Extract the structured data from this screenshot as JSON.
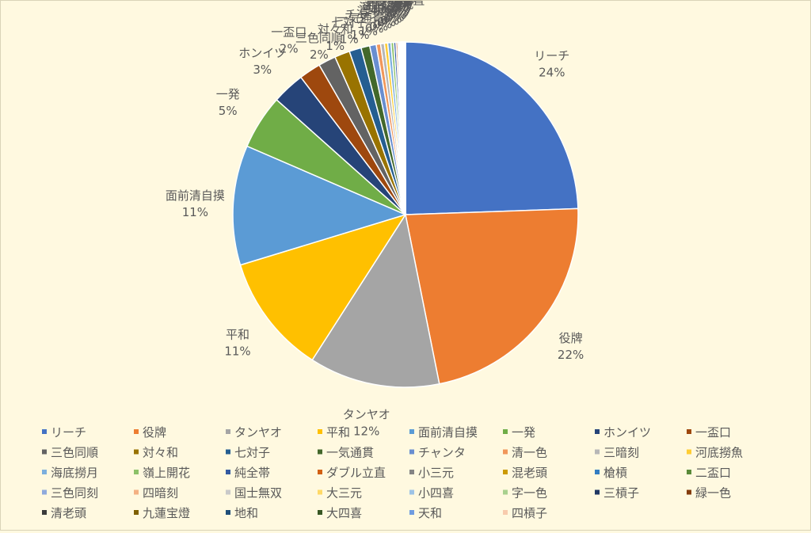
{
  "chart_data": {
    "type": "pie",
    "title": "",
    "legend_position": "bottom",
    "slices": [
      {
        "label": "リーチ",
        "value": 24,
        "label_text": "24%",
        "color": "#4472c4"
      },
      {
        "label": "役牌",
        "value": 22,
        "label_text": "22%",
        "color": "#ed7d31"
      },
      {
        "label": "タンヤオ",
        "value": 12,
        "label_text": "12%",
        "color": "#a5a5a5"
      },
      {
        "label": "平和",
        "value": 11,
        "label_text": "11%",
        "color": "#ffc000"
      },
      {
        "label": "面前清自摸",
        "value": 11,
        "label_text": "11%",
        "color": "#5b9bd5"
      },
      {
        "label": "一発",
        "value": 5,
        "label_text": "5%",
        "color": "#70ad47"
      },
      {
        "label": "ホンイツ",
        "value": 3,
        "label_text": "3%",
        "color": "#264478"
      },
      {
        "label": "一盃口",
        "value": 2,
        "label_text": "2%",
        "color": "#9e480e"
      },
      {
        "label": "三色同順",
        "value": 1.6,
        "label_text": "2%",
        "color": "#636363"
      },
      {
        "label": "対々和",
        "value": 1.4,
        "label_text": "1%",
        "color": "#997300"
      },
      {
        "label": "七対子",
        "value": 1.1,
        "label_text": "1%",
        "color": "#255e91"
      },
      {
        "label": "一気通貫",
        "value": 0.8,
        "label_text": "1%",
        "color": "#43682b"
      },
      {
        "label": "チャンタ",
        "value": 0.6,
        "label_text": "1%",
        "color": "#698ed0"
      },
      {
        "label": "清一色",
        "value": 0.4,
        "label_text": "0%",
        "color": "#f1975a"
      },
      {
        "label": "三暗刻",
        "value": 0.35,
        "label_text": "0%",
        "color": "#b7b7b7"
      },
      {
        "label": "河底撈魚",
        "value": 0.3,
        "label_text": "0%",
        "color": "#ffcd33"
      },
      {
        "label": "海底撈月",
        "value": 0.3,
        "label_text": "0%",
        "color": "#7cafdd"
      },
      {
        "label": "嶺上開花",
        "value": 0.25,
        "label_text": "0%",
        "color": "#8cc168"
      },
      {
        "label": "純全帯",
        "value": 0.2,
        "label_text": "0%",
        "color": "#335aa1"
      },
      {
        "label": "ダブル立直",
        "value": 0.15,
        "label_text": "0%",
        "color": "#d26012"
      },
      {
        "label": "小三元",
        "value": 0.12,
        "label_text": "0%",
        "color": "#848484"
      },
      {
        "label": "混老頭",
        "value": 0.1,
        "label_text": "0%",
        "color": "#cc9a00"
      },
      {
        "label": "槍槓",
        "value": 0.08,
        "label_text": "0%",
        "color": "#327dc2"
      },
      {
        "label": "二盃口",
        "value": 0.07,
        "label_text": "0%",
        "color": "#5a8a39"
      },
      {
        "label": "三色同刻",
        "value": 0.05,
        "label_text": "0%",
        "color": "#8faadc"
      },
      {
        "label": "四暗刻",
        "value": 0.05,
        "label_text": "0%",
        "color": "#f4b183"
      },
      {
        "label": "国士無双",
        "value": 0.04,
        "label_text": "0%",
        "color": "#c9c9c9"
      },
      {
        "label": "大三元",
        "value": 0.04,
        "label_text": "0%",
        "color": "#ffd966"
      },
      {
        "label": "小四喜",
        "value": 0.03,
        "label_text": "0%",
        "color": "#9dc3e6"
      },
      {
        "label": "字一色",
        "value": 0.03,
        "label_text": "0%",
        "color": "#a9d18e"
      },
      {
        "label": "三槓子",
        "value": 0.02,
        "label_text": "0%",
        "color": "#203864"
      },
      {
        "label": "緑一色",
        "value": 0.02,
        "label_text": "0%",
        "color": "#843c0c"
      },
      {
        "label": "清老頭",
        "value": 0.02,
        "label_text": "0%",
        "color": "#3b3b3b"
      },
      {
        "label": "九蓮宝燈",
        "value": 0.01,
        "label_text": "0%",
        "color": "#7f6000"
      },
      {
        "label": "地和",
        "value": 0.01,
        "label_text": "0%",
        "color": "#1f4e79"
      },
      {
        "label": "大四喜",
        "value": 0.01,
        "label_text": "0%",
        "color": "#385723"
      },
      {
        "label": "天和",
        "value": 0.01,
        "label_text": "0%",
        "color": "#6f9ce0"
      },
      {
        "label": "四槓子",
        "value": 0.01,
        "label_text": "0%",
        "color": "#f8cbad"
      }
    ]
  }
}
